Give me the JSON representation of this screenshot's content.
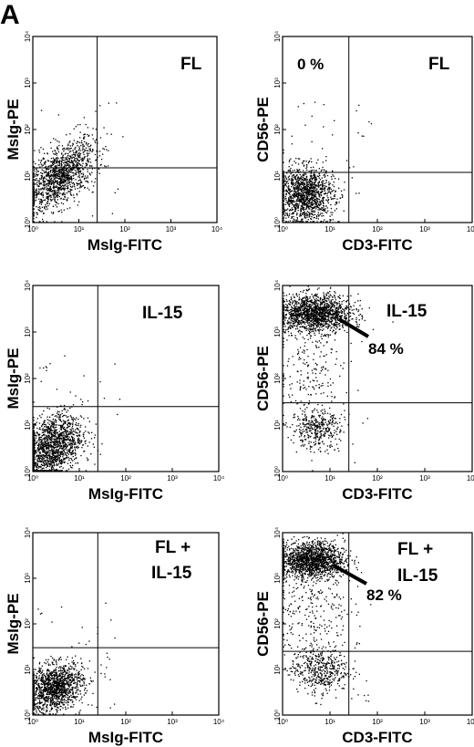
{
  "figure_label": "A",
  "chart_data": [
    {
      "type": "scatter",
      "panel": "row1-left",
      "xlabel": "MsIg-FITC",
      "ylabel": "MsIg-PE",
      "x_scale": "log",
      "y_scale": "log",
      "xlim": [
        1,
        10000
      ],
      "ylim": [
        1,
        10000
      ],
      "xticks": [
        "10⁰",
        "10¹",
        "10²",
        "10³",
        "10⁴"
      ],
      "yticks": [
        "10⁰",
        "10¹",
        "10²",
        "10³",
        "10⁴"
      ],
      "gate": [
        25,
        15
      ],
      "annotations": [
        {
          "text": "FL",
          "position": "top-right"
        }
      ],
      "populations": [
        {
          "quadrant": "lower-left",
          "center": [
            4,
            10
          ],
          "spread": [
            0.38,
            0.3
          ],
          "tilt": 0.55,
          "count": 1300
        }
      ]
    },
    {
      "type": "scatter",
      "panel": "row1-right",
      "xlabel": "CD3-FITC",
      "ylabel": "CD56-PE",
      "x_scale": "log",
      "y_scale": "log",
      "xlim": [
        1,
        10000
      ],
      "ylim": [
        1,
        10000
      ],
      "xticks": [
        "10⁰",
        "10¹",
        "10²",
        "10³",
        "10⁴"
      ],
      "yticks": [
        "10⁰",
        "10¹",
        "10²",
        "10³",
        "10⁴"
      ],
      "gate": [
        25,
        12
      ],
      "annotations": [
        {
          "text": "0 %",
          "position": "top-left"
        },
        {
          "text": "FL",
          "position": "top-right"
        }
      ],
      "populations": [
        {
          "quadrant": "lower-left",
          "center": [
            3,
            4
          ],
          "spread": [
            0.3,
            0.3
          ],
          "tilt": 0,
          "count": 1300
        }
      ]
    },
    {
      "type": "scatter",
      "panel": "row2-left",
      "xlabel": "MsIg-FITC",
      "ylabel": "MsIg-PE",
      "x_scale": "log",
      "y_scale": "log",
      "xlim": [
        1,
        10000
      ],
      "ylim": [
        1,
        10000
      ],
      "xticks": [
        "10⁰",
        "10¹",
        "10²",
        "10³",
        "10⁴"
      ],
      "yticks": [
        "10⁰",
        "10¹",
        "10²",
        "10³",
        "10⁴"
      ],
      "gate": [
        25,
        25
      ],
      "annotations": [
        {
          "text": "IL-15",
          "position": "top-right"
        }
      ],
      "populations": [
        {
          "quadrant": "lower-left",
          "center": [
            2.5,
            3.5
          ],
          "spread": [
            0.33,
            0.33
          ],
          "tilt": 0.35,
          "count": 1500
        }
      ]
    },
    {
      "type": "scatter",
      "panel": "row2-right",
      "xlabel": "CD3-FITC",
      "ylabel": "CD56-PE",
      "x_scale": "log",
      "y_scale": "log",
      "xlim": [
        1,
        10000
      ],
      "ylim": [
        1,
        10000
      ],
      "xticks": [
        "10⁰",
        "10¹",
        "10²",
        "10³",
        "10⁴"
      ],
      "yticks": [
        "10⁰",
        "10¹",
        "10²",
        "10³",
        "10⁴"
      ],
      "gate": [
        25,
        30
      ],
      "annotations": [
        {
          "text": "IL-15",
          "position": "top-right"
        },
        {
          "text": "84 %",
          "position": "upper-middle"
        }
      ],
      "populations": [
        {
          "quadrant": "upper-left",
          "center": [
            5,
            2500
          ],
          "spread": [
            0.38,
            0.2
          ],
          "tilt": 0,
          "count": 1500
        },
        {
          "quadrant": "lower-left",
          "center": [
            5,
            8
          ],
          "spread": [
            0.25,
            0.2
          ],
          "tilt": 0,
          "count": 350
        },
        {
          "quadrant": "left",
          "center": [
            4,
            150
          ],
          "spread": [
            0.4,
            0.65
          ],
          "tilt": 0,
          "count": 200
        }
      ]
    },
    {
      "type": "scatter",
      "panel": "row3-left",
      "xlabel": "MsIg-FITC",
      "ylabel": "MsIg-PE",
      "x_scale": "log",
      "y_scale": "log",
      "xlim": [
        1,
        10000
      ],
      "ylim": [
        1,
        10000
      ],
      "xticks": [
        "10⁰",
        "10¹",
        "10²",
        "10³",
        "10⁴"
      ],
      "yticks": [
        "10⁰",
        "10¹",
        "10²",
        "10³",
        "10⁴"
      ],
      "gate": [
        25,
        30
      ],
      "annotations": [
        {
          "text": "FL +",
          "position": "top-right"
        },
        {
          "text": "IL-15",
          "position": "top-right"
        }
      ],
      "populations": [
        {
          "quadrant": "lower-left",
          "center": [
            3,
            4
          ],
          "spread": [
            0.3,
            0.25
          ],
          "tilt": 0.2,
          "count": 1300
        }
      ]
    },
    {
      "type": "scatter",
      "panel": "row3-right",
      "xlabel": "CD3-FITC",
      "ylabel": "CD56-PE",
      "x_scale": "log",
      "y_scale": "log",
      "xlim": [
        1,
        10000
      ],
      "ylim": [
        1,
        10000
      ],
      "xticks": [
        "10⁰",
        "10¹",
        "10²",
        "10³",
        "10⁴"
      ],
      "yticks": [
        "10⁰",
        "10¹",
        "10²",
        "10³",
        "10⁴"
      ],
      "gate": [
        25,
        25
      ],
      "annotations": [
        {
          "text": "FL +",
          "position": "top-right"
        },
        {
          "text": "IL-15",
          "position": "top-right"
        },
        {
          "text": "82 %",
          "position": "upper-middle"
        }
      ],
      "populations": [
        {
          "quadrant": "upper-left",
          "center": [
            4,
            2500
          ],
          "spread": [
            0.35,
            0.2
          ],
          "tilt": 0,
          "count": 1500
        },
        {
          "quadrant": "lower-left",
          "center": [
            6,
            10
          ],
          "spread": [
            0.3,
            0.25
          ],
          "tilt": 0,
          "count": 450
        },
        {
          "quadrant": "left",
          "center": [
            4,
            200
          ],
          "spread": [
            0.4,
            0.6
          ],
          "tilt": 0,
          "count": 250
        }
      ]
    }
  ]
}
